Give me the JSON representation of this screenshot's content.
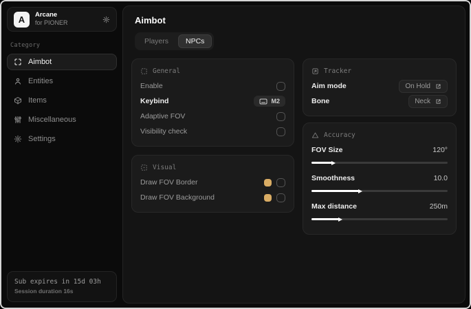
{
  "brand": {
    "logo_letter": "A",
    "title": "Arcane",
    "subtitle": "for PIONER",
    "header_icon": "gear-icon"
  },
  "sidebar": {
    "category_label": "Category",
    "items": [
      {
        "label": "Aimbot",
        "icon": "scan-crosshair-icon",
        "active": true
      },
      {
        "label": "Entities",
        "icon": "person-icon",
        "active": false
      },
      {
        "label": "Items",
        "icon": "cube-icon",
        "active": false
      },
      {
        "label": "Miscellaneous",
        "icon": "sliders-icon",
        "active": false
      },
      {
        "label": "Settings",
        "icon": "gear-icon",
        "active": false
      }
    ],
    "status": {
      "line1": "Sub expires in 15d 03h",
      "line2": "Session duration 16s"
    }
  },
  "main": {
    "title": "Aimbot",
    "tabs": [
      {
        "label": "Players",
        "active": false
      },
      {
        "label": "NPCs",
        "active": true
      }
    ],
    "sections": {
      "general": {
        "title": "General",
        "icon": "dashed-box-icon",
        "rows": [
          {
            "label": "Enable",
            "control": "checkbox",
            "checked": false
          },
          {
            "label": "Keybind",
            "control": "keybind",
            "value": "M2"
          },
          {
            "label": "Adaptive FOV",
            "control": "checkbox",
            "checked": false
          },
          {
            "label": "Visibility check",
            "control": "checkbox",
            "checked": false
          }
        ]
      },
      "visual": {
        "title": "Visual",
        "icon": "focus-dot-icon",
        "rows": [
          {
            "label": "Draw FOV Border",
            "control": "color-checkbox",
            "color": "#d9ac64",
            "checked": false
          },
          {
            "label": "Draw FOV Background",
            "control": "color-checkbox",
            "color": "#d9ac64",
            "checked": false
          }
        ]
      },
      "tracker": {
        "title": "Tracker",
        "icon": "box-arrow-icon",
        "rows": [
          {
            "label": "Aim mode",
            "control": "dropdown",
            "value": "On Hold"
          },
          {
            "label": "Bone",
            "control": "dropdown",
            "value": "Neck"
          }
        ]
      },
      "accuracy": {
        "title": "Accuracy",
        "icon": "triangle-icon",
        "rows": [
          {
            "label": "FOV Size",
            "control": "slider",
            "value": "120°",
            "percent": 16
          },
          {
            "label": "Smoothness",
            "control": "slider",
            "value": "10.0",
            "percent": 36
          },
          {
            "label": "Max distance",
            "control": "slider",
            "value": "250m",
            "percent": 21
          }
        ]
      }
    }
  },
  "colors": {
    "accent_swatch": "#d9ac64",
    "panel_bg": "#141414",
    "card_bg": "#1b1b1b",
    "window_bg": "#0b0b0b"
  }
}
